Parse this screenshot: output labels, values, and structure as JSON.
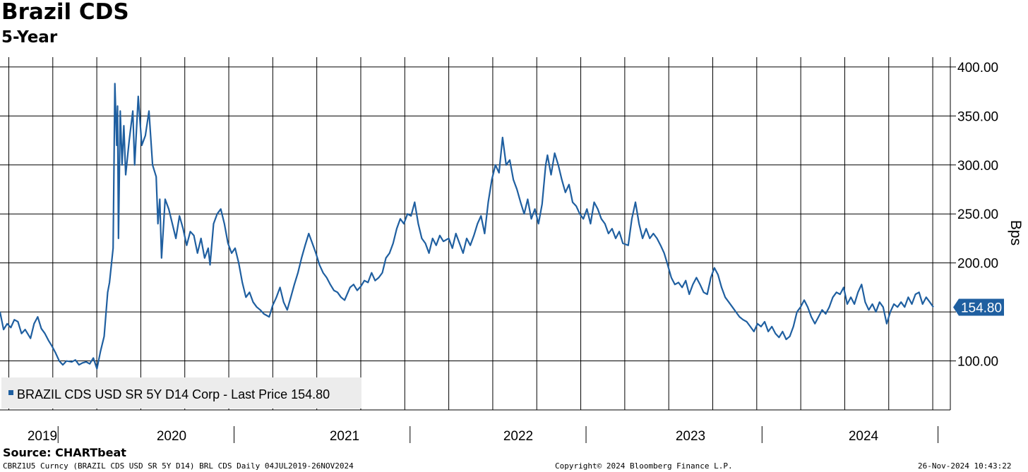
{
  "header": {
    "title": "Brazil CDS",
    "subtitle": "5-Year"
  },
  "footer": {
    "source": "Source:  CHARTbeat",
    "ticker_info": "CBRZ1U5 Curncy (BRAZIL CDS USD SR 5Y D14) BRL CDS  Daily 04JUL2019-26NOV2024",
    "copyright": "Copyright© 2024 Bloomberg Finance L.P.",
    "timestamp": "26-Nov-2024 10:43:22"
  },
  "colors": {
    "line": "#1f5fa0",
    "grid": "#000000",
    "legend_bg": "#ececec"
  },
  "chart_data": {
    "type": "line",
    "ylabel": "Bps",
    "ylim": [
      50,
      410
    ],
    "yticks": [
      100,
      150,
      200,
      250,
      300,
      350,
      400
    ],
    "ytick_labels": [
      "100.00",
      "",
      "200.00",
      "250.00",
      "300.00",
      "350.00",
      "400.00"
    ],
    "x_start": "2019-07-04",
    "x_end": "2024-11-26",
    "year_labels": [
      {
        "label": "2019",
        "x": 2019.75
      },
      {
        "label": "2020",
        "x": 2020.5
      },
      {
        "label": "2021",
        "x": 2021.5
      },
      {
        "label": "2022",
        "x": 2022.5
      },
      {
        "label": "2023",
        "x": 2023.5
      },
      {
        "label": "2024",
        "x": 2024.5
      }
    ],
    "year_boundaries": [
      2020,
      2021,
      2022,
      2023,
      2024
    ],
    "legend": "BRAZIL CDS USD SR 5Y D14 Corp - Last Price 154.80",
    "last_value": 154.8,
    "last_label": "154.80",
    "series": [
      {
        "name": "BRAZIL CDS USD SR 5Y D14 Corp",
        "points": [
          [
            2019.5,
            150
          ],
          [
            2019.52,
            132
          ],
          [
            2019.54,
            138
          ],
          [
            2019.56,
            134
          ],
          [
            2019.58,
            142
          ],
          [
            2019.6,
            140
          ],
          [
            2019.62,
            128
          ],
          [
            2019.64,
            132
          ],
          [
            2019.67,
            123
          ],
          [
            2019.69,
            138
          ],
          [
            2019.71,
            145
          ],
          [
            2019.73,
            133
          ],
          [
            2019.75,
            128
          ],
          [
            2019.77,
            121
          ],
          [
            2019.79,
            115
          ],
          [
            2019.81,
            108
          ],
          [
            2019.83,
            100
          ],
          [
            2019.85,
            96
          ],
          [
            2019.87,
            100
          ],
          [
            2019.9,
            99
          ],
          [
            2019.92,
            101
          ],
          [
            2019.94,
            96
          ],
          [
            2019.96,
            98
          ],
          [
            2019.98,
            99
          ],
          [
            2020.0,
            97
          ],
          [
            2020.02,
            103
          ],
          [
            2020.04,
            92
          ],
          [
            2020.06,
            110
          ],
          [
            2020.08,
            125
          ],
          [
            2020.1,
            170
          ],
          [
            2020.11,
            180
          ],
          [
            2020.13,
            215
          ],
          [
            2020.14,
            383
          ],
          [
            2020.15,
            320
          ],
          [
            2020.155,
            360
          ],
          [
            2020.16,
            225
          ],
          [
            2020.17,
            355
          ],
          [
            2020.18,
            300
          ],
          [
            2020.19,
            340
          ],
          [
            2020.2,
            290
          ],
          [
            2020.22,
            325
          ],
          [
            2020.24,
            355
          ],
          [
            2020.25,
            300
          ],
          [
            2020.27,
            370
          ],
          [
            2020.29,
            320
          ],
          [
            2020.31,
            330
          ],
          [
            2020.33,
            355
          ],
          [
            2020.35,
            300
          ],
          [
            2020.37,
            288
          ],
          [
            2020.38,
            240
          ],
          [
            2020.39,
            265
          ],
          [
            2020.4,
            205
          ],
          [
            2020.42,
            265
          ],
          [
            2020.44,
            255
          ],
          [
            2020.46,
            240
          ],
          [
            2020.48,
            225
          ],
          [
            2020.5,
            248
          ],
          [
            2020.52,
            235
          ],
          [
            2020.54,
            218
          ],
          [
            2020.56,
            232
          ],
          [
            2020.58,
            228
          ],
          [
            2020.6,
            210
          ],
          [
            2020.62,
            225
          ],
          [
            2020.64,
            205
          ],
          [
            2020.66,
            215
          ],
          [
            2020.67,
            198
          ],
          [
            2020.69,
            240
          ],
          [
            2020.71,
            250
          ],
          [
            2020.73,
            255
          ],
          [
            2020.75,
            240
          ],
          [
            2020.77,
            220
          ],
          [
            2020.79,
            210
          ],
          [
            2020.81,
            215
          ],
          [
            2020.83,
            200
          ],
          [
            2020.85,
            180
          ],
          [
            2020.87,
            165
          ],
          [
            2020.89,
            170
          ],
          [
            2020.91,
            160
          ],
          [
            2020.93,
            155
          ],
          [
            2020.95,
            152
          ],
          [
            2020.97,
            148
          ],
          [
            2021.0,
            145
          ],
          [
            2021.02,
            157
          ],
          [
            2021.04,
            165
          ],
          [
            2021.06,
            175
          ],
          [
            2021.08,
            160
          ],
          [
            2021.1,
            152
          ],
          [
            2021.12,
            165
          ],
          [
            2021.14,
            178
          ],
          [
            2021.16,
            190
          ],
          [
            2021.18,
            205
          ],
          [
            2021.2,
            218
          ],
          [
            2021.22,
            230
          ],
          [
            2021.24,
            220
          ],
          [
            2021.26,
            210
          ],
          [
            2021.28,
            198
          ],
          [
            2021.3,
            190
          ],
          [
            2021.32,
            185
          ],
          [
            2021.34,
            178
          ],
          [
            2021.36,
            172
          ],
          [
            2021.38,
            170
          ],
          [
            2021.4,
            165
          ],
          [
            2021.42,
            162
          ],
          [
            2021.45,
            175
          ],
          [
            2021.47,
            178
          ],
          [
            2021.49,
            172
          ],
          [
            2021.51,
            176
          ],
          [
            2021.53,
            182
          ],
          [
            2021.55,
            180
          ],
          [
            2021.57,
            190
          ],
          [
            2021.59,
            182
          ],
          [
            2021.61,
            185
          ],
          [
            2021.63,
            190
          ],
          [
            2021.65,
            205
          ],
          [
            2021.67,
            210
          ],
          [
            2021.69,
            220
          ],
          [
            2021.71,
            235
          ],
          [
            2021.73,
            245
          ],
          [
            2021.75,
            240
          ],
          [
            2021.77,
            250
          ],
          [
            2021.79,
            248
          ],
          [
            2021.81,
            262
          ],
          [
            2021.83,
            240
          ],
          [
            2021.85,
            225
          ],
          [
            2021.87,
            220
          ],
          [
            2021.89,
            210
          ],
          [
            2021.91,
            225
          ],
          [
            2021.93,
            218
          ],
          [
            2021.95,
            228
          ],
          [
            2021.97,
            222
          ],
          [
            2022.0,
            225
          ],
          [
            2022.02,
            215
          ],
          [
            2022.04,
            230
          ],
          [
            2022.06,
            220
          ],
          [
            2022.08,
            210
          ],
          [
            2022.1,
            225
          ],
          [
            2022.12,
            218
          ],
          [
            2022.14,
            228
          ],
          [
            2022.16,
            240
          ],
          [
            2022.18,
            248
          ],
          [
            2022.2,
            230
          ],
          [
            2022.22,
            262
          ],
          [
            2022.24,
            285
          ],
          [
            2022.26,
            300
          ],
          [
            2022.28,
            292
          ],
          [
            2022.3,
            328
          ],
          [
            2022.32,
            300
          ],
          [
            2022.34,
            305
          ],
          [
            2022.36,
            285
          ],
          [
            2022.38,
            275
          ],
          [
            2022.4,
            262
          ],
          [
            2022.42,
            250
          ],
          [
            2022.44,
            265
          ],
          [
            2022.46,
            245
          ],
          [
            2022.48,
            255
          ],
          [
            2022.5,
            240
          ],
          [
            2022.52,
            260
          ],
          [
            2022.54,
            300
          ],
          [
            2022.55,
            310
          ],
          [
            2022.57,
            290
          ],
          [
            2022.59,
            312
          ],
          [
            2022.61,
            300
          ],
          [
            2022.63,
            285
          ],
          [
            2022.65,
            272
          ],
          [
            2022.67,
            280
          ],
          [
            2022.69,
            262
          ],
          [
            2022.71,
            258
          ],
          [
            2022.73,
            250
          ],
          [
            2022.75,
            245
          ],
          [
            2022.77,
            255
          ],
          [
            2022.79,
            240
          ],
          [
            2022.81,
            262
          ],
          [
            2022.83,
            255
          ],
          [
            2022.85,
            245
          ],
          [
            2022.87,
            240
          ],
          [
            2022.89,
            230
          ],
          [
            2022.91,
            235
          ],
          [
            2022.93,
            225
          ],
          [
            2022.95,
            232
          ],
          [
            2022.97,
            220
          ],
          [
            2023.0,
            218
          ],
          [
            2023.02,
            245
          ],
          [
            2023.04,
            262
          ],
          [
            2023.06,
            240
          ],
          [
            2023.08,
            225
          ],
          [
            2023.1,
            235
          ],
          [
            2023.12,
            225
          ],
          [
            2023.14,
            230
          ],
          [
            2023.16,
            225
          ],
          [
            2023.18,
            218
          ],
          [
            2023.2,
            210
          ],
          [
            2023.22,
            198
          ],
          [
            2023.24,
            185
          ],
          [
            2023.26,
            178
          ],
          [
            2023.28,
            180
          ],
          [
            2023.3,
            175
          ],
          [
            2023.32,
            182
          ],
          [
            2023.34,
            168
          ],
          [
            2023.36,
            178
          ],
          [
            2023.38,
            185
          ],
          [
            2023.4,
            178
          ],
          [
            2023.42,
            170
          ],
          [
            2023.44,
            168
          ],
          [
            2023.46,
            185
          ],
          [
            2023.48,
            195
          ],
          [
            2023.5,
            188
          ],
          [
            2023.52,
            175
          ],
          [
            2023.54,
            165
          ],
          [
            2023.56,
            160
          ],
          [
            2023.58,
            155
          ],
          [
            2023.6,
            150
          ],
          [
            2023.62,
            145
          ],
          [
            2023.64,
            142
          ],
          [
            2023.66,
            140
          ],
          [
            2023.68,
            135
          ],
          [
            2023.7,
            130
          ],
          [
            2023.72,
            138
          ],
          [
            2023.74,
            135
          ],
          [
            2023.76,
            140
          ],
          [
            2023.78,
            130
          ],
          [
            2023.8,
            135
          ],
          [
            2023.82,
            128
          ],
          [
            2023.84,
            124
          ],
          [
            2023.86,
            130
          ],
          [
            2023.88,
            122
          ],
          [
            2023.9,
            125
          ],
          [
            2023.92,
            135
          ],
          [
            2023.94,
            150
          ],
          [
            2023.96,
            155
          ],
          [
            2023.98,
            162
          ],
          [
            2024.0,
            155
          ],
          [
            2024.02,
            145
          ],
          [
            2024.04,
            138
          ],
          [
            2024.06,
            145
          ],
          [
            2024.08,
            152
          ],
          [
            2024.1,
            148
          ],
          [
            2024.12,
            155
          ],
          [
            2024.14,
            165
          ],
          [
            2024.16,
            170
          ],
          [
            2024.18,
            168
          ],
          [
            2024.2,
            175
          ],
          [
            2024.22,
            158
          ],
          [
            2024.24,
            165
          ],
          [
            2024.26,
            158
          ],
          [
            2024.28,
            170
          ],
          [
            2024.3,
            178
          ],
          [
            2024.32,
            160
          ],
          [
            2024.34,
            152
          ],
          [
            2024.36,
            158
          ],
          [
            2024.38,
            150
          ],
          [
            2024.4,
            160
          ],
          [
            2024.42,
            155
          ],
          [
            2024.44,
            138
          ],
          [
            2024.46,
            150
          ],
          [
            2024.48,
            158
          ],
          [
            2024.5,
            155
          ],
          [
            2024.52,
            160
          ],
          [
            2024.54,
            155
          ],
          [
            2024.56,
            165
          ],
          [
            2024.58,
            158
          ],
          [
            2024.6,
            168
          ],
          [
            2024.62,
            170
          ],
          [
            2024.64,
            158
          ],
          [
            2024.66,
            165
          ],
          [
            2024.68,
            160
          ],
          [
            2024.7,
            154.8
          ]
        ]
      }
    ]
  }
}
